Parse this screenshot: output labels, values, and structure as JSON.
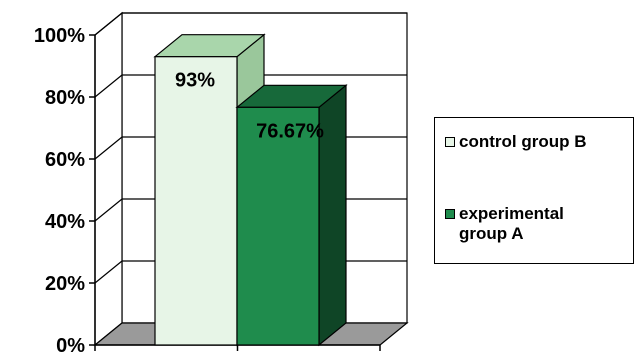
{
  "chart_data": {
    "type": "bar",
    "categories": [
      "control group B",
      "experimental group A"
    ],
    "values": [
      93,
      76.67
    ],
    "data_labels": [
      "93%",
      "76.67%"
    ],
    "y_ticks": [
      "0%",
      "20%",
      "40%",
      "60%",
      "80%",
      "100%"
    ],
    "ylim": [
      0,
      100
    ],
    "grid": true,
    "legend_position": "right",
    "series_colors": [
      "#e7f5e7",
      "#1f8c4d"
    ],
    "series_top_colors": [
      "#a9d6ab",
      "#17693a"
    ],
    "series_side_colors": [
      "#9ac79b",
      "#0f4526"
    ],
    "wall_color": "#ffffff",
    "floor_color": "#9a9a9a",
    "legend": [
      {
        "label_lines": [
          "control group B"
        ]
      },
      {
        "label_lines": [
          "experimental",
          "group A"
        ]
      }
    ]
  }
}
